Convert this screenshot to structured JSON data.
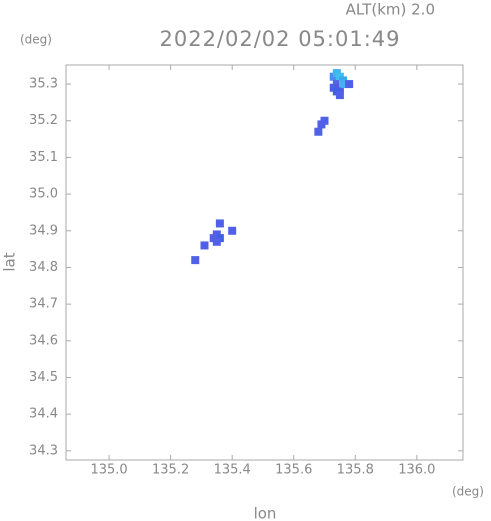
{
  "chart_data": {
    "type": "scatter",
    "altitude": "ALT(km) 2.0",
    "title": "2022/02/02 05:01:49",
    "y_unit": "(deg)",
    "x_unit": "(deg)",
    "ylabel": "lat",
    "xlabel": "lon",
    "xlim": [
      134.86,
      136.15
    ],
    "ylim": [
      34.275,
      35.352
    ],
    "xticks": [
      {
        "value": 135.0,
        "label": "135.0"
      },
      135.2,
      135.4,
      135.6,
      135.8,
      {
        "value": 136.0,
        "label": "136.0"
      }
    ],
    "yticks": [
      34.3,
      34.4,
      34.5,
      34.6,
      34.7,
      34.8,
      34.9,
      {
        "value": 35.0,
        "label": "35.0"
      },
      35.1,
      35.2,
      35.3
    ],
    "x": [
      135.73,
      135.74,
      135.75,
      135.76,
      135.74,
      135.73,
      135.75,
      135.76,
      135.78,
      135.74,
      135.75,
      135.7,
      135.69,
      135.68,
      135.36,
      135.35,
      135.36,
      135.35,
      135.34,
      135.31,
      135.4,
      135.28
    ],
    "y": [
      35.32,
      35.33,
      35.32,
      35.31,
      35.3,
      35.29,
      35.29,
      35.3,
      35.3,
      35.28,
      35.27,
      35.2,
      35.19,
      35.17,
      34.92,
      34.89,
      34.88,
      34.87,
      34.88,
      34.86,
      34.9,
      34.82
    ],
    "colors": [
      "#4a8cf0",
      "#3fb4ef",
      "#40c0f0",
      "#3aa8ee",
      "#5068e8",
      "#4a60e6",
      "#5858e8",
      "#48b0ee",
      "#5060e6",
      "#4060e4",
      "#5060e8",
      "#5060e8",
      "#5060e8",
      "#5060e8",
      "#5060e8",
      "#5060e8",
      "#4060e4",
      "#5060e8",
      "#5060e8",
      "#5060e8",
      "#5060e8",
      "#5060e8"
    ]
  }
}
